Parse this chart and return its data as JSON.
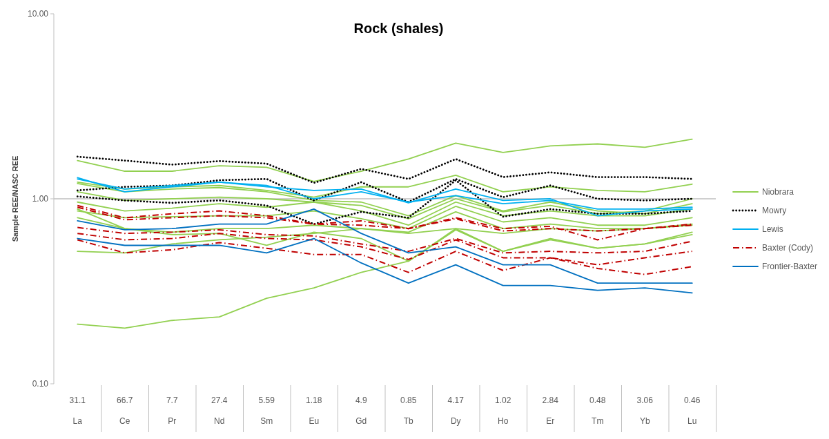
{
  "chart_data": {
    "type": "line",
    "title": "Rock (shales)",
    "ylabel": "Sample REE/NASC REE",
    "log": true,
    "ylim": [
      0.1,
      10
    ],
    "yticks": [
      {
        "value": 0.1,
        "label": "0.10"
      },
      {
        "value": 1,
        "label": "1.00"
      },
      {
        "value": 10,
        "label": "10.00"
      }
    ],
    "grid": false,
    "legend": "right",
    "marker": "none",
    "categories": [
      "La",
      "Ce",
      "Pr",
      "Nd",
      "Sm",
      "Eu",
      "Gd",
      "Tb",
      "Dy",
      "Ho",
      "Er",
      "Tm",
      "Yb",
      "Lu"
    ],
    "annotations": [
      "31.1",
      "66.7",
      "7.7",
      "27.4",
      "5.59",
      "1.18",
      "4.9",
      "0.85",
      "4.17",
      "1.02",
      "2.84",
      "0.48",
      "3.06",
      "0.46"
    ],
    "ref_lines": [
      {
        "axis": "y",
        "value": 1,
        "color": "#bfbfbf",
        "line_style": "solid"
      }
    ],
    "series": [
      {
        "name": "Niobrara",
        "color": "#92d050",
        "line_style": "solid",
        "values": [
          1.61,
          1.41,
          1.41,
          1.51,
          1.48,
          1.24,
          1.41,
          1.64,
          2.0,
          1.78,
          1.93,
          1.98,
          1.9,
          2.1
        ]
      },
      {
        "color": "#92d050",
        "line_style": "solid",
        "values": [
          1.23,
          1.13,
          1.16,
          1.18,
          1.11,
          1.02,
          1.16,
          1.16,
          1.34,
          1.09,
          1.16,
          1.11,
          1.09,
          1.2
        ]
      },
      {
        "color": "#92d050",
        "line_style": "solid",
        "values": [
          1.21,
          1.09,
          1.13,
          1.15,
          1.09,
          0.98,
          0.96,
          0.81,
          1.04,
          0.86,
          0.96,
          0.86,
          0.83,
          0.94
        ]
      },
      {
        "color": "#92d050",
        "line_style": "solid",
        "values": [
          1.09,
          0.98,
          1.0,
          1.02,
          1.0,
          0.96,
          0.92,
          0.78,
          1.0,
          0.85,
          0.92,
          0.83,
          0.86,
          1.0
        ]
      },
      {
        "color": "#92d050",
        "line_style": "solid",
        "values": [
          0.96,
          0.86,
          0.89,
          0.94,
          0.9,
          0.96,
          0.86,
          0.72,
          0.96,
          0.81,
          0.86,
          0.81,
          0.81,
          0.88
        ]
      },
      {
        "color": "#92d050",
        "line_style": "solid",
        "values": [
          0.86,
          0.79,
          0.8,
          0.81,
          0.81,
          0.86,
          0.78,
          0.69,
          0.91,
          0.75,
          0.79,
          0.72,
          0.72,
          0.79
        ]
      },
      {
        "color": "#92d050",
        "line_style": "solid",
        "values": [
          0.88,
          0.69,
          0.66,
          0.69,
          0.69,
          0.72,
          0.69,
          0.66,
          0.85,
          0.69,
          0.73,
          0.69,
          0.69,
          0.72
        ]
      },
      {
        "color": "#92d050",
        "line_style": "solid",
        "values": [
          0.52,
          0.51,
          0.57,
          0.6,
          0.62,
          0.65,
          0.69,
          0.65,
          0.69,
          0.65,
          0.69,
          0.67,
          0.69,
          0.73
        ]
      },
      {
        "color": "#92d050",
        "line_style": "solid",
        "values": [
          0.79,
          0.69,
          0.64,
          0.65,
          0.56,
          0.66,
          0.61,
          0.46,
          0.69,
          0.52,
          0.6,
          0.54,
          0.57,
          0.64
        ]
      },
      {
        "color": "#92d050",
        "line_style": "solid",
        "values": [
          0.21,
          0.2,
          0.22,
          0.23,
          0.29,
          0.33,
          0.4,
          0.46,
          0.68,
          0.52,
          0.61,
          0.54,
          0.57,
          0.66
        ]
      },
      {
        "name": "Mowry",
        "color": "#000000",
        "line_style": "dotted",
        "values": [
          1.69,
          1.61,
          1.53,
          1.6,
          1.55,
          1.22,
          1.45,
          1.28,
          1.64,
          1.31,
          1.39,
          1.31,
          1.31,
          1.28
        ]
      },
      {
        "color": "#000000",
        "line_style": "dotted",
        "values": [
          1.11,
          1.16,
          1.18,
          1.26,
          1.28,
          0.98,
          1.23,
          0.96,
          1.28,
          1.02,
          1.18,
          1.0,
          0.98,
          1.0
        ]
      },
      {
        "color": "#000000",
        "line_style": "dotted",
        "values": [
          1.03,
          0.98,
          0.95,
          0.98,
          0.92,
          0.73,
          0.85,
          0.79,
          1.26,
          0.8,
          0.88,
          0.83,
          0.83,
          0.86
        ]
      },
      {
        "name": "Lewis",
        "color": "#00b0f0",
        "line_style": "solid",
        "values": [
          1.3,
          1.09,
          1.16,
          1.23,
          1.16,
          1.11,
          1.13,
          0.95,
          1.13,
          0.98,
          1.0,
          0.81,
          0.86,
          0.88
        ]
      },
      {
        "color": "#00b0f0",
        "line_style": "solid",
        "values": [
          1.28,
          1.13,
          1.18,
          1.23,
          1.18,
          1.0,
          1.09,
          0.96,
          1.04,
          0.94,
          0.98,
          0.88,
          0.88,
          0.9
        ]
      },
      {
        "name": "Baxter (Cody)",
        "color": "#c00000",
        "line_style": "dashdot",
        "values": [
          0.92,
          0.79,
          0.83,
          0.86,
          0.81,
          0.73,
          0.76,
          0.69,
          0.79,
          0.69,
          0.71,
          0.6,
          0.69,
          0.73
        ]
      },
      {
        "color": "#c00000",
        "line_style": "dashdot",
        "values": [
          0.9,
          0.77,
          0.79,
          0.81,
          0.79,
          0.73,
          0.72,
          0.69,
          0.78,
          0.67,
          0.69,
          0.67,
          0.69,
          0.72
        ]
      },
      {
        "color": "#c00000",
        "line_style": "dashdot",
        "values": [
          0.7,
          0.65,
          0.66,
          0.68,
          0.64,
          0.63,
          0.57,
          0.52,
          0.61,
          0.51,
          0.52,
          0.51,
          0.52,
          0.59
        ]
      },
      {
        "color": "#c00000",
        "line_style": "dashdot",
        "values": [
          0.65,
          0.6,
          0.61,
          0.65,
          0.61,
          0.6,
          0.55,
          0.47,
          0.6,
          0.48,
          0.48,
          0.44,
          0.48,
          0.52
        ]
      },
      {
        "color": "#c00000",
        "line_style": "dashdot",
        "values": [
          0.6,
          0.51,
          0.53,
          0.58,
          0.54,
          0.5,
          0.5,
          0.4,
          0.52,
          0.41,
          0.48,
          0.42,
          0.39,
          0.43
        ]
      },
      {
        "name": "Frontier-Baxter",
        "color": "#0070c0",
        "line_style": "solid",
        "values": [
          0.76,
          0.68,
          0.69,
          0.73,
          0.73,
          0.88,
          0.65,
          0.51,
          0.55,
          0.44,
          0.44,
          0.35,
          0.35,
          0.35
        ]
      },
      {
        "color": "#0070c0",
        "line_style": "solid",
        "values": [
          0.61,
          0.56,
          0.56,
          0.56,
          0.51,
          0.61,
          0.45,
          0.35,
          0.44,
          0.34,
          0.34,
          0.32,
          0.33,
          0.31
        ]
      }
    ]
  }
}
